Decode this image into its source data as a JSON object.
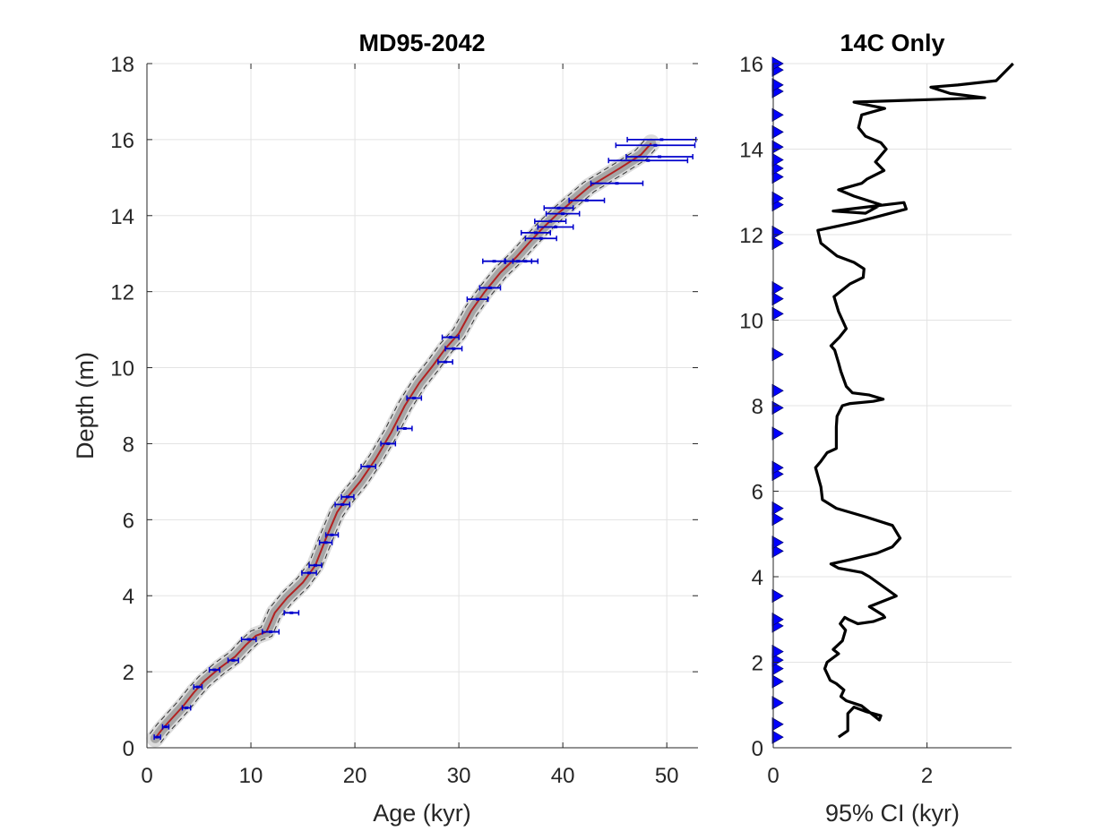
{
  "chart_data": [
    {
      "type": "line",
      "title": "MD95-2042",
      "xlabel": "Age (kyr)",
      "ylabel": "Depth (m)",
      "xlim": [
        0,
        53
      ],
      "ylim": [
        0,
        18
      ],
      "xticks": [
        0,
        10,
        20,
        30,
        40,
        50
      ],
      "yticks": [
        0,
        2,
        4,
        6,
        8,
        10,
        12,
        14,
        16,
        18
      ],
      "grid": true,
      "series": [
        {
          "role": "median-age-depth",
          "color": "#b22222",
          "age": [
            0.8,
            1.5,
            2.5,
            3.5,
            4.5,
            5.5,
            7.0,
            8.5,
            9.5,
            10.5,
            11.5,
            12.3,
            13.5,
            15.0,
            16.2,
            17.2,
            18.3,
            19.3,
            20.5,
            22.0,
            23.5,
            24.8,
            26.2,
            27.5,
            28.7,
            30.0,
            31.2,
            32.5,
            34.0,
            35.5,
            36.8,
            38.0,
            39.5,
            41.0,
            42.5,
            44.0,
            45.5,
            47.5,
            48.5
          ],
          "depth": [
            0.25,
            0.5,
            0.8,
            1.1,
            1.45,
            1.75,
            2.1,
            2.4,
            2.7,
            2.95,
            3.05,
            3.55,
            3.95,
            4.35,
            4.8,
            5.5,
            6.2,
            6.6,
            7.0,
            7.6,
            8.3,
            9.0,
            9.6,
            10.05,
            10.5,
            10.9,
            11.5,
            12.0,
            12.5,
            12.9,
            13.3,
            13.65,
            14.05,
            14.4,
            14.75,
            15.0,
            15.25,
            15.6,
            15.9
          ]
        }
      ],
      "uncertainty_band_color": "#9a9a9a",
      "dated_points": {
        "color": "#0000cc",
        "age": [
          1.0,
          1.8,
          3.8,
          4.9,
          6.5,
          8.3,
          9.8,
          11.9,
          13.9,
          15.6,
          16.2,
          17.2,
          17.8,
          18.8,
          19.3,
          21.3,
          23.2,
          24.8,
          25.7,
          28.7,
          29.5,
          29.2,
          31.8,
          33.0,
          33.4,
          35.7,
          36.4,
          37.9,
          37.4,
          39.3,
          38.8,
          40.0,
          39.6,
          42.3,
          45.2,
          48.2,
          49.3,
          48.9,
          49.5
        ],
        "depth": [
          0.28,
          0.55,
          1.05,
          1.6,
          2.05,
          2.3,
          2.85,
          3.05,
          3.55,
          4.6,
          4.8,
          5.4,
          5.6,
          6.4,
          6.6,
          7.4,
          8.0,
          8.4,
          9.2,
          10.15,
          10.5,
          10.8,
          11.8,
          12.1,
          12.8,
          12.8,
          12.8,
          13.4,
          13.55,
          13.7,
          13.85,
          14.05,
          14.2,
          14.4,
          14.85,
          15.45,
          15.55,
          15.85,
          16.0
        ],
        "err": [
          0.3,
          0.3,
          0.4,
          0.4,
          0.5,
          0.5,
          0.7,
          0.8,
          0.7,
          0.7,
          0.6,
          0.6,
          0.6,
          0.7,
          0.6,
          0.7,
          0.7,
          0.7,
          0.7,
          0.7,
          0.8,
          0.8,
          1.0,
          1.0,
          1.1,
          1.3,
          1.2,
          1.5,
          1.4,
          1.7,
          1.5,
          1.6,
          1.4,
          1.7,
          2.5,
          3.8,
          3.2,
          3.8,
          3.3
        ]
      }
    },
    {
      "type": "line",
      "title": "14C Only",
      "xlabel": "95% CI (kyr)",
      "ylabel": "",
      "xlim": [
        0,
        3.1
      ],
      "ylim": [
        0,
        16
      ],
      "xticks": [
        0,
        2
      ],
      "yticks": [
        0,
        2,
        4,
        6,
        8,
        10,
        12,
        14,
        16
      ],
      "grid": true,
      "series": [
        {
          "role": "ci-width",
          "color": "#000000",
          "x": [
            0.85,
            0.97,
            0.97,
            1.05,
            1.2,
            1.4,
            1.38,
            1.15,
            0.95,
            0.88,
            0.92,
            0.82,
            0.74,
            0.67,
            0.7,
            0.85,
            0.78,
            0.9,
            0.94,
            0.87,
            0.93,
            0.98,
            1.1,
            1.3,
            1.45,
            1.43,
            1.25,
            1.6,
            1.25,
            1.15,
            0.85,
            0.75,
            1.0,
            1.35,
            1.55,
            1.65,
            1.55,
            1.2,
            0.82,
            0.64,
            0.62,
            0.55,
            0.62,
            0.7,
            0.82,
            0.82,
            0.83,
            0.9,
            1.0,
            1.3,
            1.43,
            1.25,
            1.03,
            0.95,
            0.88,
            0.85,
            0.8,
            0.75,
            0.86,
            0.95,
            0.85,
            0.79,
            1.0,
            1.17,
            1.18,
            1.05,
            0.83,
            0.62,
            0.58,
            1.1,
            1.73,
            1.7,
            1.0,
            0.78,
            1.2,
            1.4,
            1.05,
            0.85,
            1.15,
            1.22,
            1.44,
            1.33,
            1.47,
            1.4,
            1.2,
            1.11,
            1.15,
            1.45,
            1.18,
            1.05,
            2.75,
            2.3,
            2.05,
            2.4,
            2.9,
            3.12
          ],
          "y": [
            0.25,
            0.4,
            0.8,
            0.95,
            0.85,
            0.75,
            0.65,
            0.98,
            1.1,
            1.2,
            1.35,
            1.5,
            1.58,
            1.85,
            2.0,
            2.2,
            2.3,
            2.5,
            2.75,
            2.9,
            3.05,
            3.0,
            2.9,
            2.95,
            3.05,
            3.1,
            3.3,
            3.55,
            4.0,
            4.1,
            4.2,
            4.3,
            4.4,
            4.55,
            4.7,
            4.9,
            5.2,
            5.4,
            5.6,
            5.8,
            6.1,
            6.55,
            6.7,
            6.9,
            7.0,
            7.5,
            7.75,
            8.0,
            8.05,
            8.1,
            8.15,
            8.25,
            8.3,
            8.45,
            8.8,
            9.0,
            9.3,
            9.4,
            9.6,
            9.8,
            10.2,
            10.55,
            10.85,
            11.0,
            11.2,
            11.35,
            11.5,
            11.8,
            12.1,
            12.3,
            12.6,
            12.75,
            12.6,
            12.55,
            12.5,
            12.7,
            12.9,
            13.05,
            13.2,
            13.3,
            13.5,
            13.7,
            14.0,
            14.15,
            14.3,
            14.5,
            14.8,
            14.95,
            15.05,
            15.1,
            15.2,
            15.3,
            15.45,
            15.5,
            15.6,
            16.0
          ]
        }
      ],
      "date_marker_depths": [
        0.25,
        0.55,
        1.05,
        1.55,
        1.85,
        2.05,
        2.25,
        2.85,
        3.0,
        3.55,
        4.6,
        4.8,
        5.35,
        5.6,
        6.4,
        6.55,
        7.35,
        7.95,
        8.35,
        9.2,
        10.15,
        10.5,
        10.75,
        11.8,
        12.05,
        12.7,
        12.85,
        13.35,
        13.55,
        13.75,
        14.05,
        14.4,
        14.8,
        15.35,
        15.5,
        15.85,
        16.0
      ],
      "date_marker_color": "#0000ff"
    }
  ]
}
